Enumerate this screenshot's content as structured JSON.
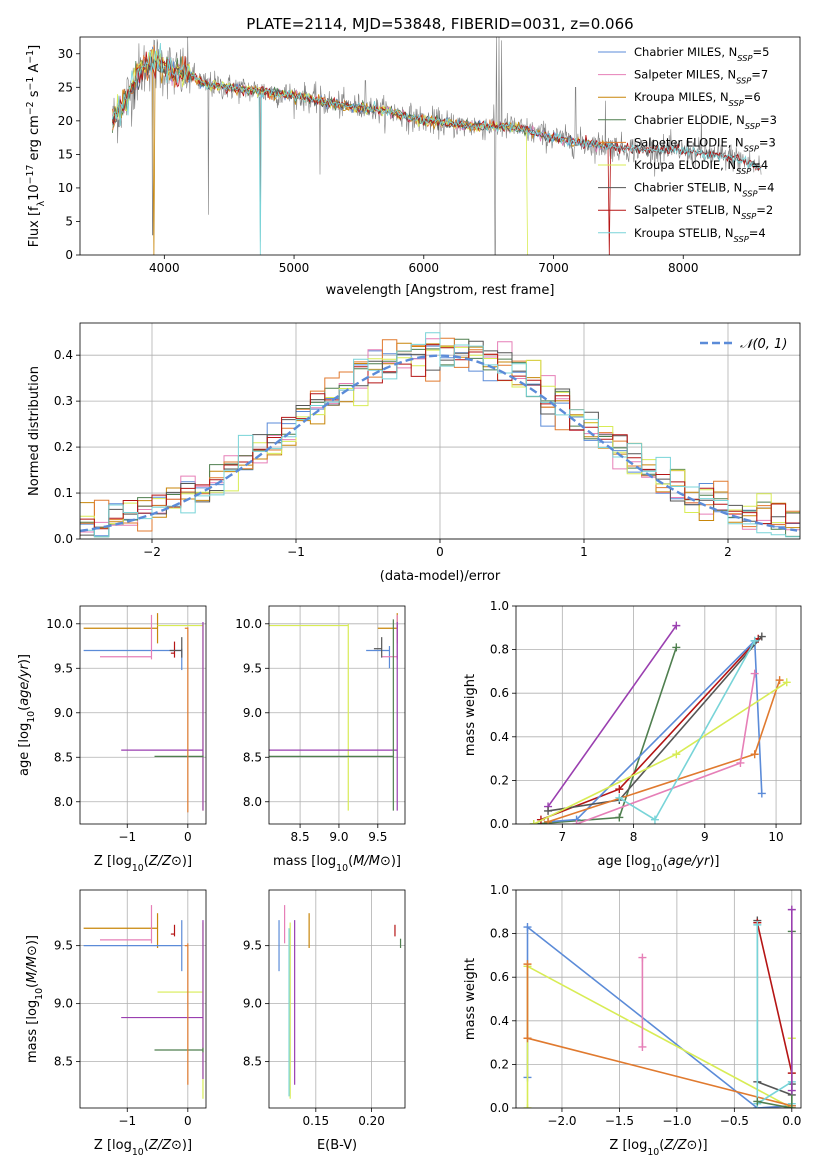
{
  "page_title": "PLATE=2114, MJD=53848, FIBERID=0031, z=0.066",
  "colors": {
    "Chabrier MILES": "#5b8bd8",
    "Salpeter MILES": "#e67fb7",
    "Kroupa MILES": "#c8860a",
    "Chabrier ELODIE": "#4f7f4f",
    "Salpeter ELODIE": "#e07a2f",
    "Kroupa ELODIE": "#d8ec55",
    "Chabrier STELIB": "#555555",
    "Salpeter STELIB": "#b51515",
    "Kroupa STELIB": "#78d4d8",
    "purple": "#9a3fb0",
    "data": "#808080",
    "grid": "#b0b0b0"
  },
  "chart_data": [
    {
      "id": "spectrum",
      "type": "line",
      "title": "PLATE=2114, MJD=53848, FIBERID=0031, z=0.066",
      "xlabel": "wavelength [Angstrom, rest frame]",
      "ylabel": "Flux [fλ10⁻¹⁷ erg cm⁻² s⁻¹ A⁻¹]",
      "xlim": [
        3350,
        8900
      ],
      "ylim": [
        0,
        32.5
      ],
      "xticks": [
        4000,
        5000,
        6000,
        7000,
        8000
      ],
      "yticks": [
        0,
        5,
        10,
        15,
        20,
        25,
        30
      ],
      "grid": false,
      "legend_position": "top-right",
      "legend": [
        {
          "prefix": "Chabrier MILES, N",
          "sub": "SSP",
          "suffix": "=5"
        },
        {
          "prefix": "Salpeter MILES, N",
          "sub": "SSP",
          "suffix": "=7"
        },
        {
          "prefix": "Kroupa MILES, N",
          "sub": "SSP",
          "suffix": "=6"
        },
        {
          "prefix": "Chabrier ELODIE, N",
          "sub": "SSP",
          "suffix": "=3"
        },
        {
          "prefix": "Salpeter ELODIE, N",
          "sub": "SSP",
          "suffix": "=3"
        },
        {
          "prefix": "Kroupa ELODIE, N",
          "sub": "SSP",
          "suffix": "=4"
        },
        {
          "prefix": "Chabrier STELIB, N",
          "sub": "SSP",
          "suffix": "=4"
        },
        {
          "prefix": "Salpeter STELIB, N",
          "sub": "SSP",
          "suffix": "=2"
        },
        {
          "prefix": "Kroupa STELIB, N",
          "sub": "SSP",
          "suffix": "=4"
        }
      ],
      "continuum_knots": [
        [
          3600,
          20
        ],
        [
          3700,
          23
        ],
        [
          3800,
          27
        ],
        [
          3900,
          29
        ],
        [
          4000,
          28
        ],
        [
          4100,
          27
        ],
        [
          4200,
          27
        ],
        [
          4300,
          25.5
        ],
        [
          4500,
          25
        ],
        [
          4700,
          24.5
        ],
        [
          4900,
          24
        ],
        [
          5100,
          23.5
        ],
        [
          5300,
          22.5
        ],
        [
          5500,
          22
        ],
        [
          5700,
          21.5
        ],
        [
          5900,
          20.5
        ],
        [
          6100,
          19.8
        ],
        [
          6300,
          19.3
        ],
        [
          6500,
          19.2
        ],
        [
          6700,
          19
        ],
        [
          6900,
          18
        ],
        [
          7100,
          17
        ],
        [
          7300,
          16.5
        ],
        [
          7500,
          16
        ],
        [
          7700,
          15.8
        ],
        [
          8000,
          15.5
        ],
        [
          8200,
          15
        ],
        [
          8400,
          14.5
        ],
        [
          8600,
          13
        ]
      ],
      "data_spikes": [
        [
          3910,
          3
        ],
        [
          4340,
          6
        ],
        [
          4740,
          2
        ],
        [
          5200,
          12
        ],
        [
          5550,
          26
        ],
        [
          6550,
          0
        ],
        [
          6560,
          32.5
        ],
        [
          6580,
          32.5
        ],
        [
          6600,
          32
        ],
        [
          7170,
          25
        ],
        [
          7400,
          23
        ],
        [
          8140,
          21
        ]
      ],
      "model_dips": [
        {
          "series": "Kroupa MILES",
          "x": 3920,
          "y": 0
        },
        {
          "series": "Kroupa STELIB",
          "x": 4740,
          "y": 0
        },
        {
          "series": "Kroupa ELODIE",
          "x": 6800,
          "y": 0
        },
        {
          "series": "Salpeter STELIB",
          "x": 7430,
          "y": 0
        }
      ]
    },
    {
      "id": "residuals",
      "type": "histogram",
      "xlabel": "(data-model)/error",
      "ylabel": "Normed distribution",
      "xlim": [
        -2.5,
        2.5
      ],
      "ylim": [
        0,
        0.47
      ],
      "xticks": [
        -2,
        -1,
        0,
        1,
        2
      ],
      "yticks": [
        0.0,
        0.1,
        0.2,
        0.3,
        0.4
      ],
      "grid": true,
      "bin_width": 0.1,
      "legend_position": "top-right",
      "reference_curve": {
        "label": "𝒩(0, 1)",
        "mean": 0,
        "sigma": 1,
        "style": "dashed"
      },
      "series_names": [
        "Chabrier MILES",
        "Salpeter MILES",
        "Kroupa MILES",
        "Chabrier ELODIE",
        "Salpeter ELODIE",
        "Kroupa ELODIE",
        "Chabrier STELIB",
        "Salpeter STELIB",
        "Kroupa STELIB"
      ]
    },
    {
      "id": "z-age",
      "type": "scatter",
      "xlabel": "Z [log10(Z/Z⊙)]",
      "ylabel": "age [log10(age/yr)]",
      "xlim": [
        -1.78,
        0.3
      ],
      "ylim": [
        7.75,
        10.2
      ],
      "xticks": [
        -1,
        0
      ],
      "yticks": [
        8.0,
        8.5,
        9.0,
        9.5,
        10.0
      ],
      "grid": true,
      "crosses": [
        {
          "color": "#c8860a",
          "x": [
            -1.72,
            -0.5
          ],
          "y": [
            9.95
          ],
          "yerr": [
            9.78,
            10.12
          ]
        },
        {
          "color": "#d8ec55",
          "x": [
            -0.5,
            0.25
          ],
          "y": [
            9.98
          ],
          "yerr": [
            7.9,
            10.0
          ]
        },
        {
          "color": "#5b8bd8",
          "x": [
            -1.72,
            -0.1
          ],
          "y": [
            9.7
          ],
          "yerr": [
            9.48,
            9.72
          ]
        },
        {
          "color": "#e67fb7",
          "x": [
            -1.45,
            -0.6
          ],
          "y": [
            9.63
          ],
          "yerr": [
            9.6,
            10.1
          ]
        },
        {
          "color": "#b51515",
          "x": [
            -0.28,
            -0.22
          ],
          "y": [
            9.67
          ],
          "yerr": [
            9.62,
            9.8
          ]
        },
        {
          "color": "#555555",
          "x": [
            -0.3,
            -0.1
          ],
          "y": [
            9.7
          ],
          "yerr": [
            9.62,
            9.85
          ]
        },
        {
          "color": "#9a3fb0",
          "x": [
            -1.1,
            0.25
          ],
          "y": [
            8.58
          ],
          "yerr": [
            7.9,
            10.02
          ]
        },
        {
          "color": "#4f7f4f",
          "x": [
            -0.55,
            0.25
          ],
          "y": [
            8.51
          ],
          "yerr": [
            8.5,
            8.52
          ]
        },
        {
          "color": "#e07a2f",
          "x": [
            -0.05,
            0.0
          ],
          "y": [
            9.95
          ],
          "yerr": [
            7.88,
            9.96
          ]
        }
      ]
    },
    {
      "id": "mass-age",
      "type": "scatter",
      "xlabel": "mass [log10(M/M⊙)]",
      "ylabel": "",
      "xlim": [
        8.1,
        9.85
      ],
      "ylim": [
        7.75,
        10.2
      ],
      "xticks": [
        8.5,
        9.0,
        9.5
      ],
      "yticks": [
        8.0,
        8.5,
        9.0,
        9.5,
        10.0
      ],
      "grid": true,
      "crosses": [
        {
          "color": "#d8ec55",
          "x": [
            8.1,
            9.12
          ],
          "y": [
            9.98
          ],
          "yerr": [
            7.9,
            10.0
          ]
        },
        {
          "color": "#c8860a",
          "x": [
            9.5,
            9.75
          ],
          "y": [
            9.95
          ],
          "yerr": [
            9.78,
            10.12
          ]
        },
        {
          "color": "#5b8bd8",
          "x": [
            9.35,
            9.65
          ],
          "y": [
            9.7
          ],
          "yerr": [
            9.5,
            9.75
          ]
        },
        {
          "color": "#e67fb7",
          "x": [
            9.55,
            9.75
          ],
          "y": [
            9.63
          ],
          "yerr": [
            9.6,
            10.1
          ]
        },
        {
          "color": "#555555",
          "x": [
            9.45,
            9.55
          ],
          "y": [
            9.72
          ],
          "yerr": [
            9.62,
            9.85
          ]
        },
        {
          "color": "#9a3fb0",
          "x": [
            8.1,
            9.75
          ],
          "y": [
            8.58
          ],
          "yerr": [
            7.9,
            10.02
          ]
        },
        {
          "color": "#4f7f4f",
          "x": [
            8.1,
            9.7
          ],
          "y": [
            8.51
          ],
          "yerr": [
            7.9,
            10.05
          ]
        }
      ]
    },
    {
      "id": "age-massweight",
      "type": "line",
      "xlabel": "age [log10(age/yr)]",
      "ylabel": "mass weight",
      "xlim": [
        6.35,
        10.35
      ],
      "ylim": [
        0,
        1.0
      ],
      "xticks": [
        7,
        8,
        9,
        10
      ],
      "yticks": [
        0.0,
        0.2,
        0.4,
        0.6,
        0.8,
        1.0
      ],
      "grid": true,
      "series": [
        {
          "color": "#9a3fb0",
          "x": [
            6.8,
            8.6
          ],
          "y": [
            0.08,
            0.91
          ]
        },
        {
          "color": "#4f7f4f",
          "x": [
            6.6,
            7.8,
            8.6
          ],
          "y": [
            0.0,
            0.03,
            0.81
          ]
        },
        {
          "color": "#b51515",
          "x": [
            6.7,
            7.8,
            9.75
          ],
          "y": [
            0.02,
            0.16,
            0.85
          ]
        },
        {
          "color": "#5b8bd8",
          "x": [
            6.8,
            7.2,
            9.7,
            9.8
          ],
          "y": [
            0.01,
            0.02,
            0.84,
            0.14
          ]
        },
        {
          "color": "#555555",
          "x": [
            6.8,
            7.8,
            9.8
          ],
          "y": [
            0.06,
            0.11,
            0.86
          ]
        },
        {
          "color": "#e07a2f",
          "x": [
            6.8,
            9.7,
            10.05
          ],
          "y": [
            0.01,
            0.32,
            0.66
          ]
        },
        {
          "color": "#d8ec55",
          "x": [
            6.6,
            8.6,
            10.15
          ],
          "y": [
            0.0,
            0.32,
            0.65
          ]
        },
        {
          "color": "#e67fb7",
          "x": [
            7.2,
            9.5,
            9.7
          ],
          "y": [
            0.0,
            0.28,
            0.69
          ]
        },
        {
          "color": "#78d4d8",
          "x": [
            7.8,
            8.3,
            9.7
          ],
          "y": [
            0.12,
            0.02,
            0.84
          ]
        }
      ]
    },
    {
      "id": "z-mass",
      "type": "scatter",
      "xlabel": "Z [log10(Z/Z⊙)]",
      "ylabel": "mass [log10(M/M⊙)]",
      "xlim": [
        -1.78,
        0.3
      ],
      "ylim": [
        8.1,
        9.98
      ],
      "xticks": [
        -1,
        0
      ],
      "yticks": [
        8.5,
        9.0,
        9.5
      ],
      "grid": true,
      "crosses": [
        {
          "color": "#c8860a",
          "x": [
            -1.72,
            -0.5
          ],
          "y": [
            9.65
          ],
          "yerr": [
            9.48,
            9.78
          ]
        },
        {
          "color": "#5b8bd8",
          "x": [
            -1.72,
            -0.1
          ],
          "y": [
            9.5
          ],
          "yerr": [
            9.28,
            9.72
          ]
        },
        {
          "color": "#e67fb7",
          "x": [
            -1.45,
            -0.6
          ],
          "y": [
            9.55
          ],
          "yerr": [
            9.52,
            9.85
          ]
        },
        {
          "color": "#d8ec55",
          "x": [
            -0.5,
            0.25
          ],
          "y": [
            9.1
          ],
          "yerr": [
            8.18,
            9.7
          ]
        },
        {
          "color": "#9a3fb0",
          "x": [
            -1.1,
            0.25
          ],
          "y": [
            8.88
          ],
          "yerr": [
            8.35,
            9.72
          ]
        },
        {
          "color": "#4f7f4f",
          "x": [
            -0.55,
            0.25
          ],
          "y": [
            8.6
          ],
          "yerr": [
            8.58,
            8.62
          ]
        },
        {
          "color": "#b51515",
          "x": [
            -0.28,
            -0.22
          ],
          "y": [
            9.6
          ],
          "yerr": [
            9.58,
            9.68
          ]
        },
        {
          "color": "#e07a2f",
          "x": [
            -0.05,
            0.0
          ],
          "y": [
            9.5
          ],
          "yerr": [
            8.3,
            9.52
          ]
        }
      ]
    },
    {
      "id": "ebv-mass",
      "type": "scatter",
      "xlabel": "E(B-V)",
      "ylabel": "",
      "xlim": [
        0.108,
        0.23
      ],
      "ylim": [
        8.1,
        9.98
      ],
      "xticks": [
        0.15,
        0.2
      ],
      "yticks": [
        8.5,
        9.0,
        9.5
      ],
      "grid": true,
      "crosses": [
        {
          "color": "#5b8bd8",
          "x": [
            0.117
          ],
          "y": [
            9.5
          ],
          "yerr": [
            9.28,
            9.72
          ]
        },
        {
          "color": "#e67fb7",
          "x": [
            0.122
          ],
          "y": [
            9.55
          ],
          "yerr": [
            9.52,
            9.85
          ]
        },
        {
          "color": "#d8ec55",
          "x": [
            0.127
          ],
          "y": [
            9.1
          ],
          "yerr": [
            8.18,
            9.7
          ]
        },
        {
          "color": "#78d4d8",
          "x": [
            0.126
          ],
          "y": [
            9.5
          ],
          "yerr": [
            8.2,
            9.65
          ]
        },
        {
          "color": "#9a3fb0",
          "x": [
            0.131
          ],
          "y": [
            8.88
          ],
          "yerr": [
            8.3,
            9.72
          ]
        },
        {
          "color": "#c8860a",
          "x": [
            0.144
          ],
          "y": [
            9.65
          ],
          "yerr": [
            9.48,
            9.78
          ]
        },
        {
          "color": "#b51515",
          "x": [
            0.221
          ],
          "y": [
            9.6
          ],
          "yerr": [
            9.58,
            9.68
          ]
        },
        {
          "color": "#4f7f4f",
          "x": [
            0.226
          ],
          "y": [
            9.5
          ],
          "yerr": [
            9.48,
            9.56
          ]
        }
      ]
    },
    {
      "id": "z-massweight",
      "type": "line",
      "xlabel": "Z [log10(Z/Z⊙)]",
      "ylabel": "mass weight",
      "xlim": [
        -2.4,
        0.08
      ],
      "ylim": [
        0,
        1.0
      ],
      "xticks": [
        -2.0,
        -1.5,
        -1.0,
        -0.5,
        0.0
      ],
      "yticks": [
        0.0,
        0.2,
        0.4,
        0.6,
        0.8,
        1.0
      ],
      "grid": true,
      "series": [
        {
          "color": "#5b8bd8",
          "x": [
            -2.3,
            -2.3,
            -0.3,
            0.0
          ],
          "y": [
            0.14,
            0.83,
            0.0,
            0.01
          ]
        },
        {
          "color": "#d8ec55",
          "x": [
            -2.3,
            -2.3,
            0.0,
            0.0
          ],
          "y": [
            0.0,
            0.65,
            0.0,
            0.32
          ]
        },
        {
          "color": "#e07a2f",
          "x": [
            -2.3,
            -2.3,
            0.0
          ],
          "y": [
            0.66,
            0.32,
            0.01
          ]
        },
        {
          "color": "#e67fb7",
          "x": [
            -1.3,
            -1.3
          ],
          "y": [
            0.28,
            0.69
          ]
        },
        {
          "color": "#555555",
          "x": [
            -0.3,
            -0.3,
            0.0,
            0.0
          ],
          "y": [
            0.86,
            0.12,
            0.06,
            0.11
          ]
        },
        {
          "color": "#b51515",
          "x": [
            -0.3,
            0.0
          ],
          "y": [
            0.85,
            0.16
          ]
        },
        {
          "color": "#78d4d8",
          "x": [
            -0.3,
            -0.3,
            0.0,
            0.0
          ],
          "y": [
            0.84,
            0.02,
            0.12,
            0.02
          ]
        },
        {
          "color": "#4f7f4f",
          "x": [
            -0.3,
            0.0,
            0.0
          ],
          "y": [
            0.03,
            0.0,
            0.81
          ]
        },
        {
          "color": "#9a3fb0",
          "x": [
            0.0,
            0.0
          ],
          "y": [
            0.08,
            0.91
          ]
        }
      ]
    }
  ]
}
